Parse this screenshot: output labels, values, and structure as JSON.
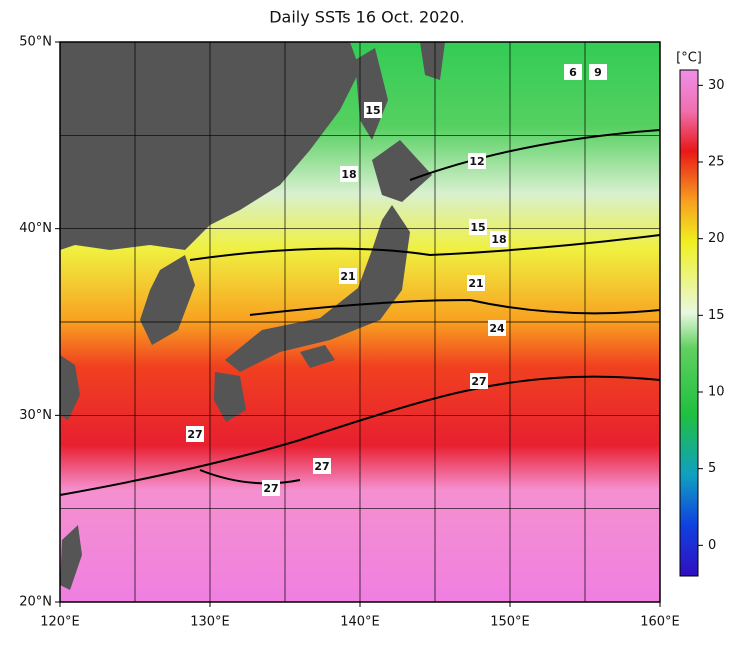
{
  "title": "Daily SSTs 16 Oct. 2020.",
  "map": {
    "lonlim": [
      120,
      160
    ],
    "latlim": [
      20,
      50
    ],
    "grid_step": 5,
    "lon_ticks": [
      {
        "value": 120,
        "label": "120°E"
      },
      {
        "value": 130,
        "label": "130°E"
      },
      {
        "value": 140,
        "label": "140°E"
      },
      {
        "value": 150,
        "label": "150°E"
      },
      {
        "value": 160,
        "label": "160°E"
      }
    ],
    "lat_ticks": [
      {
        "value": 20,
        "label": "20°N"
      },
      {
        "value": 30,
        "label": "30°N"
      },
      {
        "value": 40,
        "label": "40°N"
      },
      {
        "value": 50,
        "label": "50°N"
      }
    ]
  },
  "colorbar": {
    "unit": "[°C]",
    "range": [
      -2,
      31
    ],
    "ticks": [
      0,
      5,
      10,
      15,
      20,
      25,
      30
    ]
  },
  "contour_labels": [
    "15",
    "18",
    "12",
    "15",
    "18",
    "21",
    "21",
    "24",
    "27",
    "27",
    "27",
    "27",
    "6",
    "9"
  ]
}
